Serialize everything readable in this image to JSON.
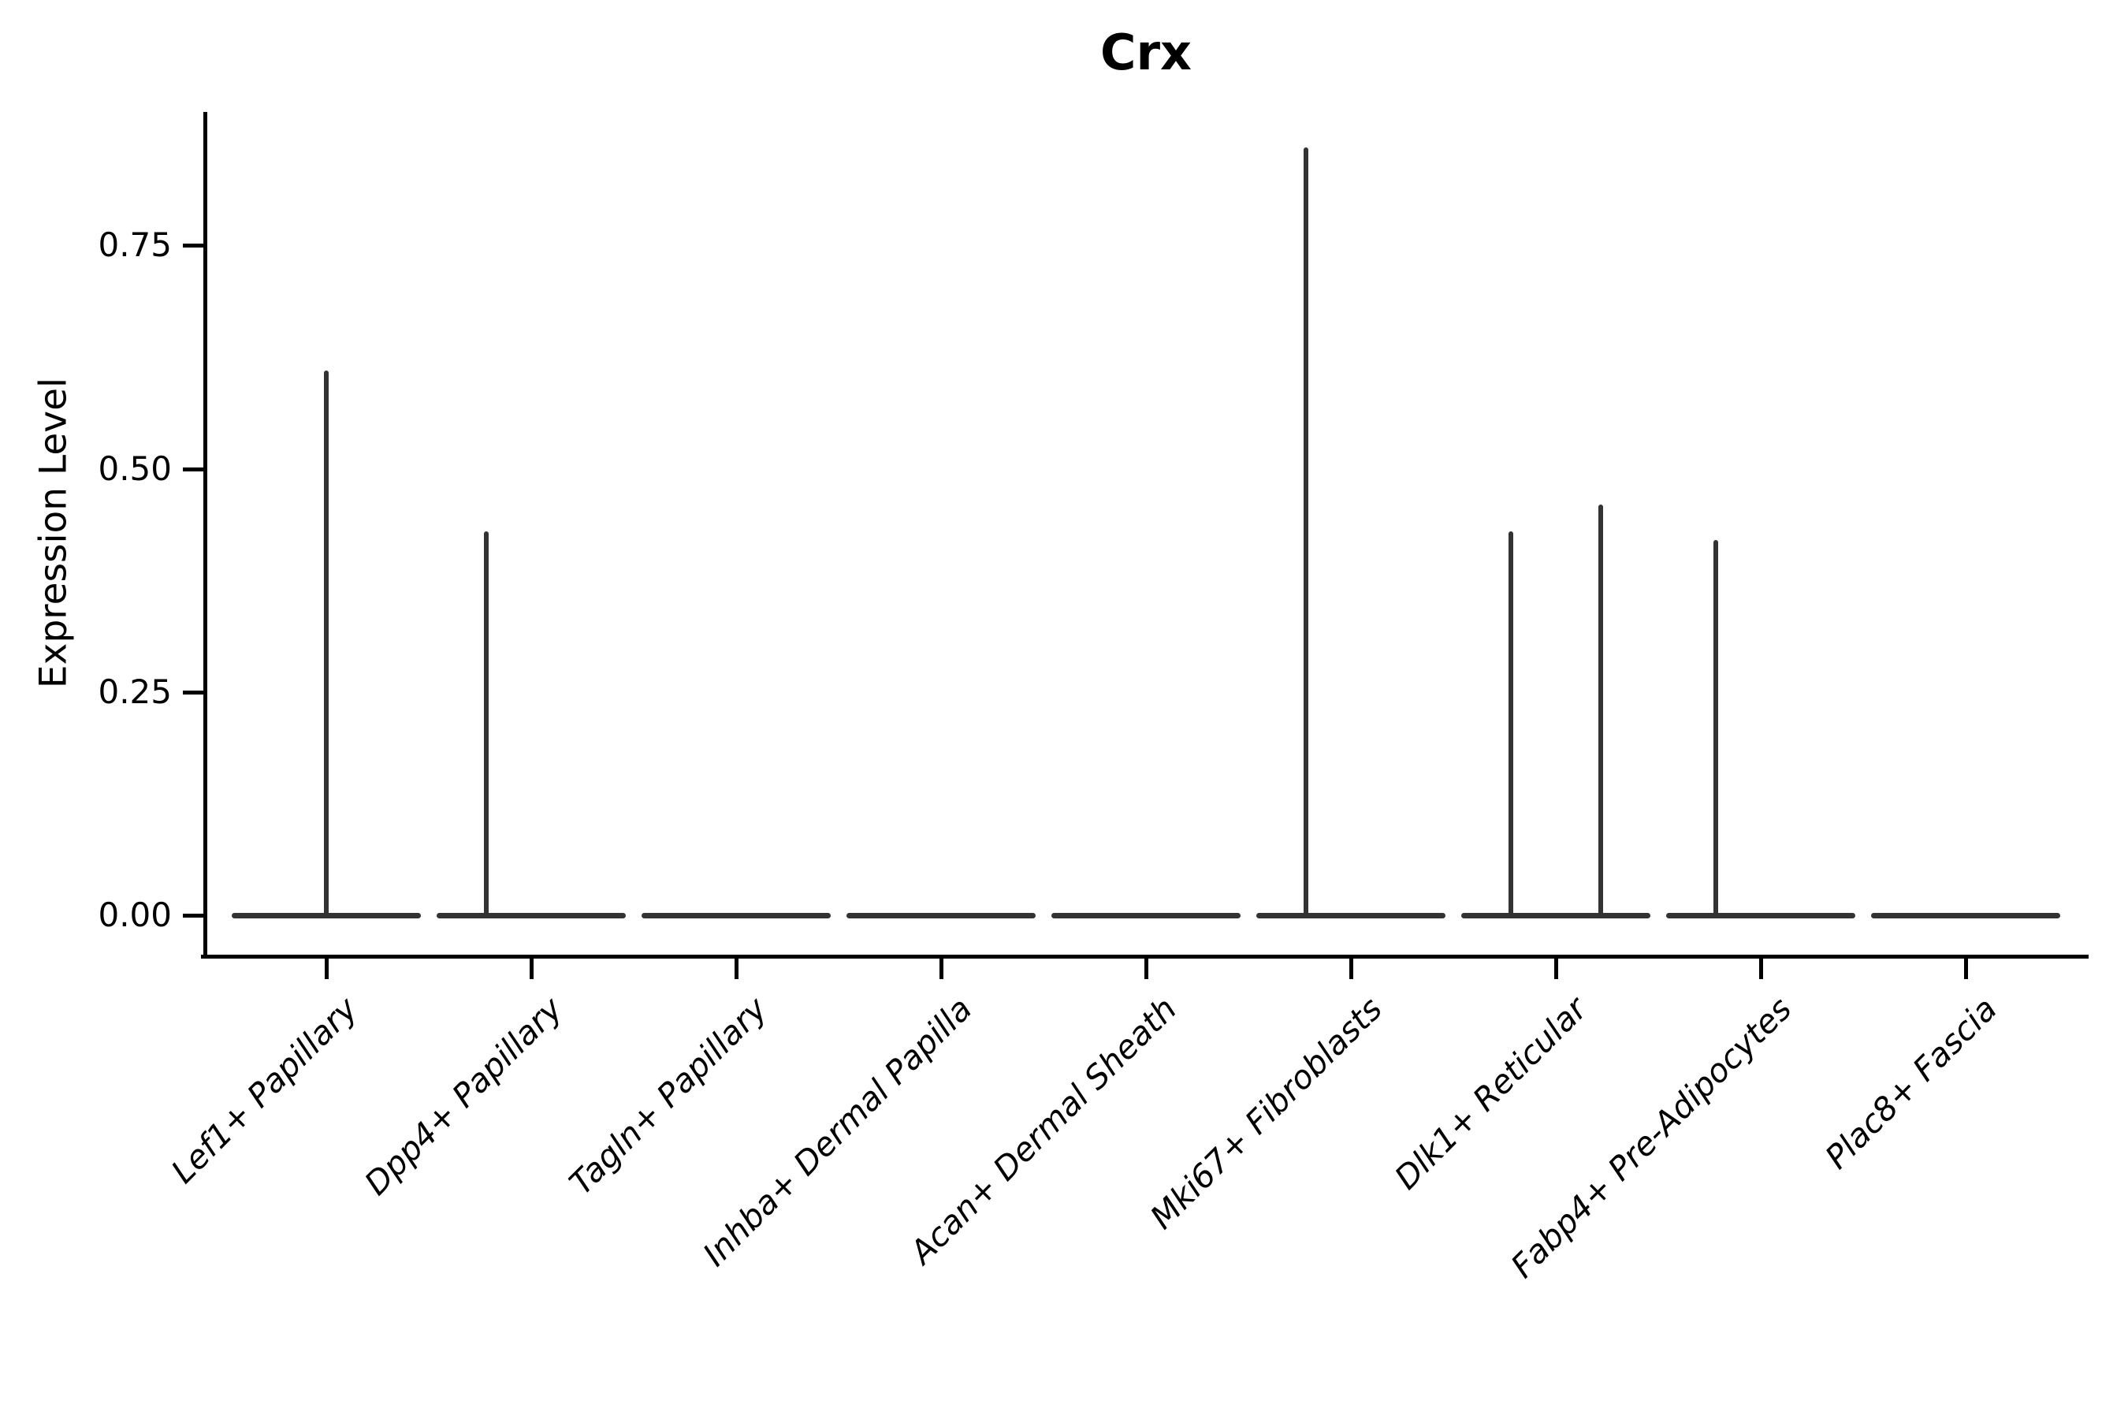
{
  "title": "Crx",
  "y_axis": {
    "label": "Expression Level"
  },
  "chart_data": {
    "type": "violin",
    "title": "Crx",
    "xlabel": "",
    "ylabel": "Expression Level",
    "ylim": [
      0,
      0.9
    ],
    "yticks": [
      {
        "value": 0.0,
        "label": "0.00"
      },
      {
        "value": 0.25,
        "label": "0.25"
      },
      {
        "value": 0.5,
        "label": "0.50"
      },
      {
        "value": 0.75,
        "label": "0.75"
      }
    ],
    "grid": false,
    "legend": "none",
    "stroke_color": "#333333",
    "axis_color": "#000000",
    "categories": [
      "Lef1+ Papillary",
      "Dpp4+ Papillary",
      "Tagln+ Papillary",
      "Inhba+ Dermal Papilla",
      "Acan+ Dermal Sheath",
      "Mki67+ Fibroblasts",
      "Dlk1+ Reticular",
      "Fabp4+ Pre-Adipocytes",
      "Plac8+ Fascia"
    ],
    "violins": [
      {
        "category": "Lef1+ Papillary",
        "baseline_value": 0.0,
        "spikes": [
          {
            "x_offset_frac": 0.0,
            "max_value": 0.61
          }
        ]
      },
      {
        "category": "Dpp4+ Papillary",
        "baseline_value": 0.0,
        "spikes": [
          {
            "x_offset_frac": -0.22,
            "max_value": 0.43
          }
        ]
      },
      {
        "category": "Tagln+ Papillary",
        "baseline_value": 0.0,
        "spikes": []
      },
      {
        "category": "Inhba+ Dermal Papilla",
        "baseline_value": 0.0,
        "spikes": []
      },
      {
        "category": "Acan+ Dermal Sheath",
        "baseline_value": 0.0,
        "spikes": []
      },
      {
        "category": "Mki67+ Fibroblasts",
        "baseline_value": 0.0,
        "spikes": [
          {
            "x_offset_frac": -0.22,
            "max_value": 0.86
          }
        ]
      },
      {
        "category": "Dlk1+ Reticular",
        "baseline_value": 0.0,
        "spikes": [
          {
            "x_offset_frac": -0.22,
            "max_value": 0.43
          },
          {
            "x_offset_frac": 0.22,
            "max_value": 0.46
          }
        ]
      },
      {
        "category": "Fabp4+ Pre-Adipocytes",
        "baseline_value": 0.0,
        "spikes": [
          {
            "x_offset_frac": -0.22,
            "max_value": 0.42
          }
        ]
      },
      {
        "category": "Plac8+ Fascia",
        "baseline_value": 0.0,
        "spikes": []
      }
    ]
  }
}
